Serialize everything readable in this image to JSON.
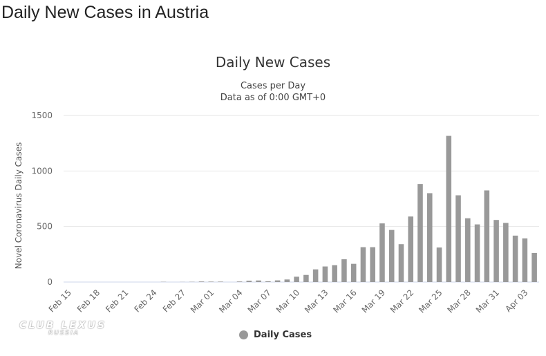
{
  "page": {
    "title": "Daily New Cases in Austria"
  },
  "watermark": {
    "main": "CLUB LEXUS",
    "sub": "RUSSIA"
  },
  "chart_data": {
    "type": "bar",
    "title": "Daily New Cases",
    "subtitle_lines": [
      "Cases per Day",
      "Data as of 0:00 GMT+0"
    ],
    "ylabel": "Novel Coronavirus Daily Cases",
    "xlabel": "",
    "ylim": [
      0,
      1500
    ],
    "yticks": [
      0,
      500,
      1000,
      1500
    ],
    "grid": true,
    "legend_position": "bottom-center",
    "bar_color": "#999999",
    "categories": [
      "Feb 15",
      "Feb 16",
      "Feb 17",
      "Feb 18",
      "Feb 19",
      "Feb 20",
      "Feb 21",
      "Feb 22",
      "Feb 23",
      "Feb 24",
      "Feb 25",
      "Feb 26",
      "Feb 27",
      "Feb 28",
      "Feb 29",
      "Mar 01",
      "Mar 02",
      "Mar 03",
      "Mar 04",
      "Mar 05",
      "Mar 06",
      "Mar 07",
      "Mar 08",
      "Mar 09",
      "Mar 10",
      "Mar 11",
      "Mar 12",
      "Mar 13",
      "Mar 14",
      "Mar 15",
      "Mar 16",
      "Mar 17",
      "Mar 18",
      "Mar 19",
      "Mar 20",
      "Mar 21",
      "Mar 22",
      "Mar 23",
      "Mar 24",
      "Mar 25",
      "Mar 26",
      "Mar 27",
      "Mar 28",
      "Mar 29",
      "Mar 30",
      "Mar 31",
      "Apr 01",
      "Apr 02",
      "Apr 03",
      "Apr 04"
    ],
    "tick_labels": [
      "Feb 15",
      "Feb 18",
      "Feb 21",
      "Feb 24",
      "Feb 27",
      "Mar 01",
      "Mar 04",
      "Mar 07",
      "Mar 10",
      "Mar 13",
      "Mar 16",
      "Mar 19",
      "Mar 22",
      "Mar 25",
      "Mar 28",
      "Mar 31",
      "Apr 03"
    ],
    "series": [
      {
        "name": "Daily Cases",
        "values": [
          0,
          0,
          0,
          0,
          0,
          0,
          0,
          0,
          0,
          0,
          2,
          0,
          1,
          2,
          5,
          4,
          4,
          0,
          5,
          12,
          14,
          7,
          15,
          23,
          48,
          64,
          114,
          140,
          152,
          205,
          164,
          314,
          314,
          528,
          469,
          341,
          590,
          883,
          800,
          311,
          1316,
          781,
          574,
          519,
          825,
          559,
          532,
          418,
          393,
          262
        ]
      }
    ]
  }
}
